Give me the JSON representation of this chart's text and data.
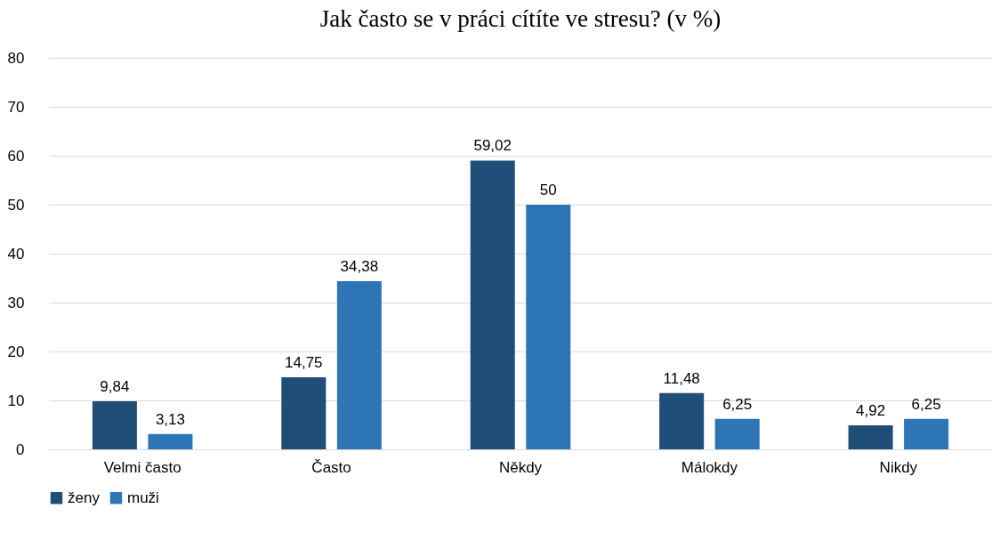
{
  "chart_data": {
    "type": "bar",
    "title": "Jak často se v práci cítíte ve stresu? (v %)",
    "categories": [
      "Velmi často",
      "Často",
      "Někdy",
      "Málokdy",
      "Nikdy"
    ],
    "series": [
      {
        "name": "ženy",
        "color": "#1f4e79",
        "values": [
          9.84,
          14.75,
          59.02,
          11.48,
          4.92
        ],
        "value_labels": [
          "9,84",
          "14,75",
          "59,02",
          "11,48",
          "4,92"
        ]
      },
      {
        "name": "muži",
        "color": "#2e75b6",
        "values": [
          3.13,
          34.38,
          50,
          6.25,
          6.25
        ],
        "value_labels": [
          "3,13",
          "34,38",
          "50",
          "6,25",
          "6,25"
        ]
      }
    ],
    "ylim": [
      0,
      80
    ],
    "yticks": [
      0,
      10,
      20,
      30,
      40,
      50,
      60,
      70,
      80
    ],
    "grid": "y",
    "legend": "bottom"
  }
}
